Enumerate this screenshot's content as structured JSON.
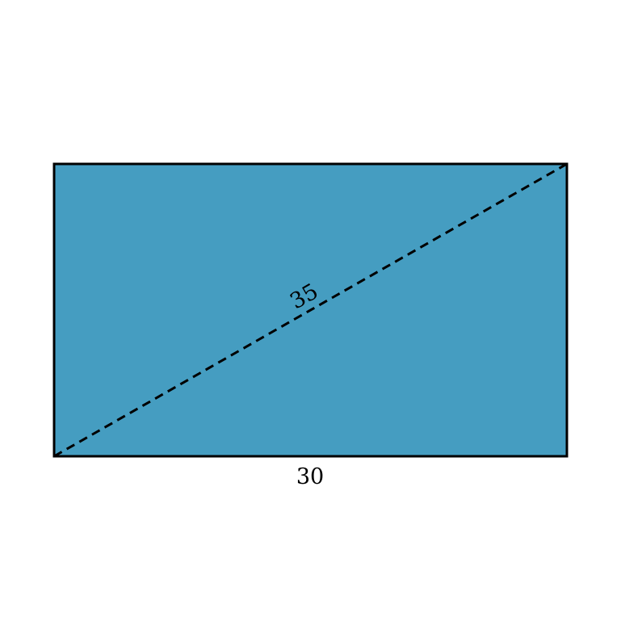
{
  "diagram": {
    "fill_color": "#459dc1",
    "stroke_color": "#000000",
    "diagonal_style": "dashed",
    "base_label": "30",
    "diagonal_label": "35"
  }
}
